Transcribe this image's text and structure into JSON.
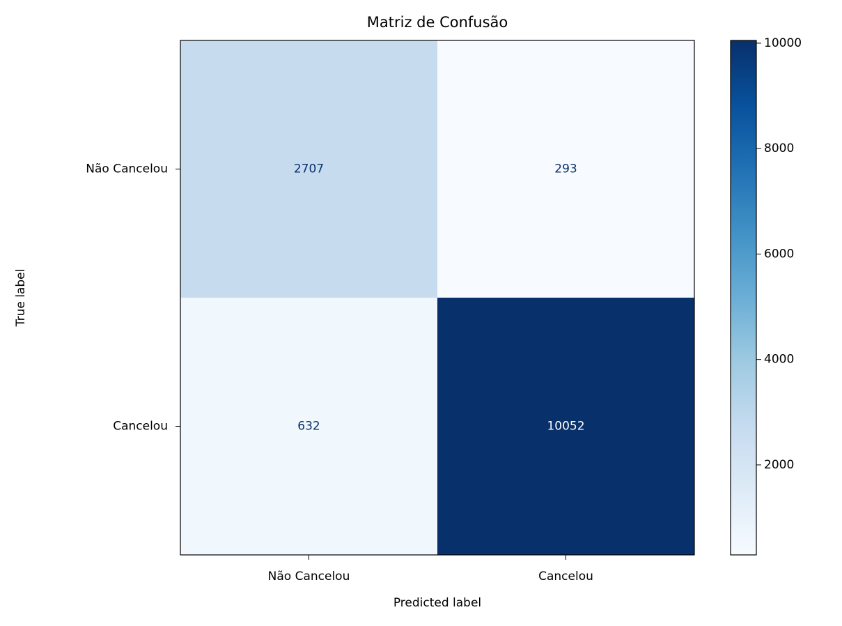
{
  "chart_data": {
    "type": "heatmap",
    "title": "Matriz de Confusão",
    "xlabel": "Predicted label",
    "ylabel": "True label",
    "x_categories": [
      "Não Cancelou",
      "Cancelou"
    ],
    "y_categories": [
      "Não Cancelou",
      "Cancelou"
    ],
    "values": [
      [
        2707,
        293
      ],
      [
        632,
        10052
      ]
    ],
    "colorbar_lim": [
      293,
      10052
    ],
    "colorbar_ticks": [
      2000,
      4000,
      6000,
      8000,
      10000
    ],
    "colors": [
      "#f7fbff",
      "#deebf7",
      "#c6dbef",
      "#9ecae1",
      "#6baed6",
      "#4292c6",
      "#2171b5",
      "#08519c",
      "#08306b"
    ]
  }
}
